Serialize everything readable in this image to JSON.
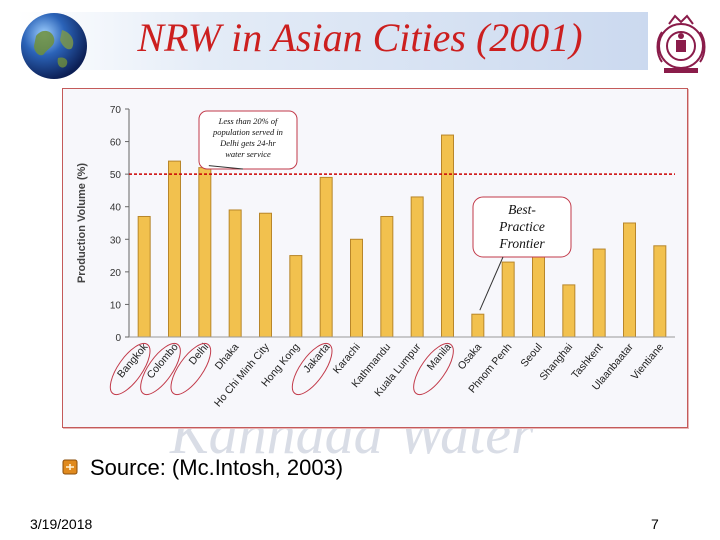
{
  "slide": {
    "title": "NRW in Asian Cities (2001)",
    "source": "Source: (Mc.Intosh,  2003)",
    "date": "3/19/2018",
    "page_number": "7",
    "watermark": "Kannada Water"
  },
  "colors": {
    "title": "#cc1f1f",
    "bar_fill": "#f2c14e",
    "bar_edge": "#b8862a",
    "frontier_line": "#cc0000",
    "annotation_circle": "#c23a4a",
    "callout_border": "#c23a4a"
  },
  "icons": {
    "logo_left": "globe-icon",
    "logo_right": "university-seal-icon",
    "bullet": "bullet-square-icon"
  },
  "annotations": {
    "delhi_note": [
      "Less than 20% of",
      "population served in",
      "Delhi gets 24-hr",
      "water service"
    ],
    "frontier_label": [
      "Best-",
      "Practice",
      "Frontier"
    ]
  },
  "chart_data": {
    "type": "bar",
    "ylabel": "Production Volume (%)",
    "xlabel": "",
    "ylim": [
      0,
      70
    ],
    "yticks": [
      0,
      10,
      20,
      30,
      40,
      50,
      60,
      70
    ],
    "categories": [
      "Bangkok",
      "Colombo",
      "Delhi",
      "Dhaka",
      "Ho Chi Minh City",
      "Hong Kong",
      "Jakarta",
      "Karachi",
      "Kathmandu",
      "Kuala Lumpur",
      "Manila",
      "Osaka",
      "Phnom Penh",
      "Seoul",
      "Shanghai",
      "Tashkent",
      "Ulaanbaatar",
      "Vientiane"
    ],
    "values": [
      37,
      54,
      52,
      39,
      38,
      25,
      49,
      30,
      37,
      43,
      62,
      7,
      23,
      25,
      16,
      27,
      35,
      28
    ],
    "reference_line": 50,
    "circled_categories": [
      "Bangkok",
      "Colombo",
      "Delhi",
      "Jakarta",
      "Manila"
    ],
    "grid": false,
    "legend": "none"
  }
}
